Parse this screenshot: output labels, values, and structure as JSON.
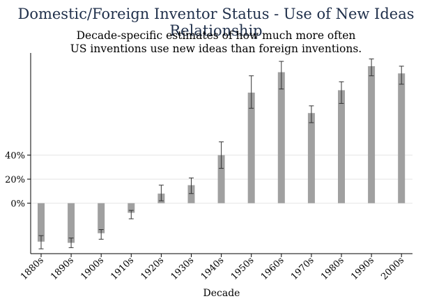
{
  "chart_data": {
    "type": "bar",
    "title": "Domestic/Foreign Inventor Status - Use of New Ideas Relationship",
    "subtitle_lines": [
      "Decade-specific estimates of how much more often",
      "US inventions use new ideas than foreign inventions."
    ],
    "xlabel": "Decade",
    "ylabel": "",
    "categories": [
      "1880s",
      "1890s",
      "1900s",
      "1910s",
      "1920s",
      "1930s",
      "1940s",
      "1950s",
      "1960s",
      "1970s",
      "1980s",
      "1990s",
      "2000s"
    ],
    "values": [
      -32,
      -33,
      -25,
      -8,
      8,
      15,
      40,
      92,
      109,
      75,
      94,
      114,
      108
    ],
    "error_low": [
      -38,
      -37,
      -30,
      -13,
      2,
      8,
      29,
      79,
      95,
      67,
      83,
      106,
      99
    ],
    "error_high": [
      -27,
      -29,
      -22,
      -6,
      15,
      21,
      51,
      106,
      118,
      81,
      101,
      120,
      114
    ],
    "yticks": [
      0,
      20,
      40
    ],
    "ytick_labels": [
      "0%",
      "20%",
      "40%"
    ],
    "ylim": [
      -42,
      125
    ],
    "grid": true,
    "colors": {
      "bar": "#a0a0a0",
      "axis": "#000000",
      "grid": "#e4e4e4",
      "title": "#1f2f4a"
    }
  }
}
